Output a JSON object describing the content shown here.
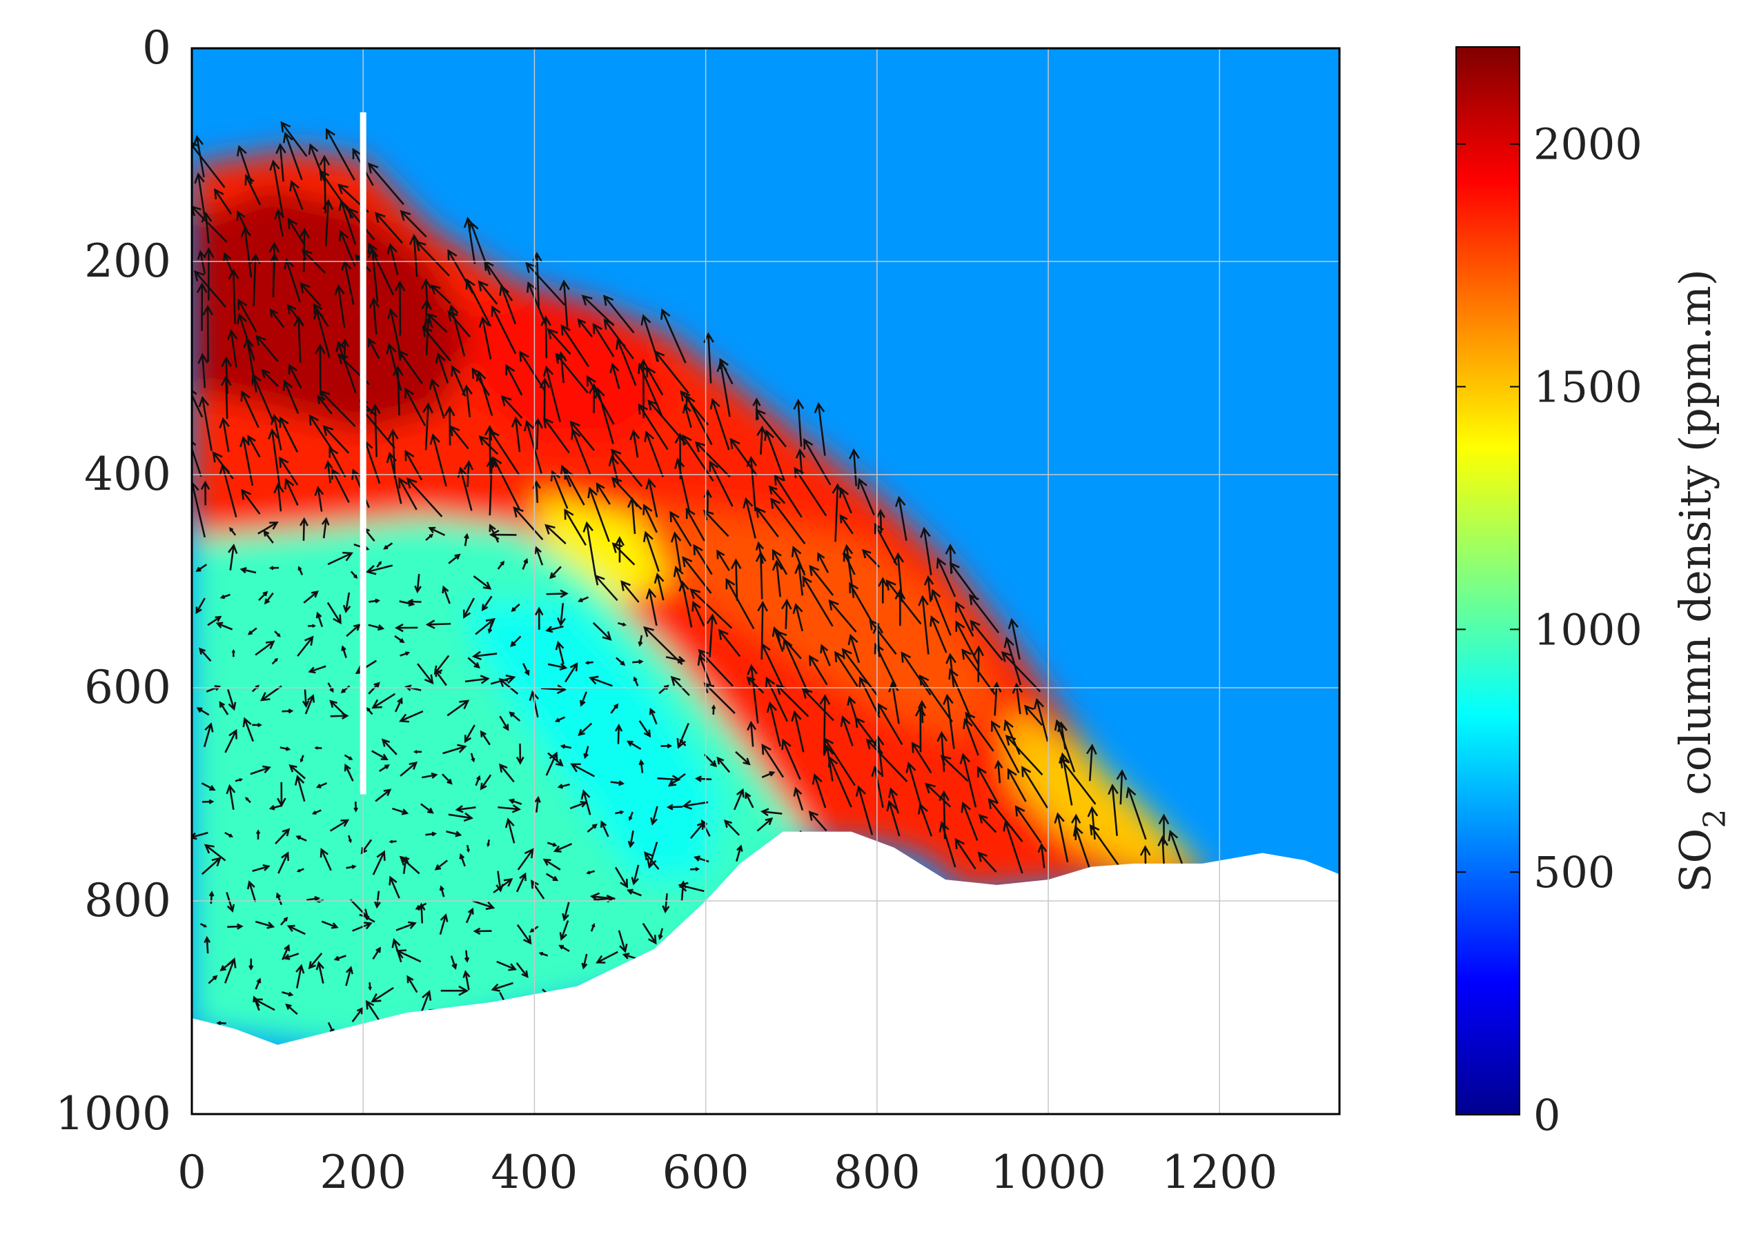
{
  "chart_data": {
    "type": "heatmap",
    "title": "",
    "xlabel": "",
    "ylabel": "",
    "xlim": [
      0,
      1340
    ],
    "ylim": [
      1000,
      0
    ],
    "x_ticks": [
      "0",
      "200",
      "400",
      "600",
      "800",
      "1000",
      "1200"
    ],
    "y_ticks": [
      "0",
      "200",
      "400",
      "600",
      "800",
      "1000"
    ],
    "grid": true,
    "colormap": "jet",
    "colorbar": {
      "label": "SO",
      "label_subscript": "2",
      "label_suffix": " column density (ppm.m)",
      "range": [
        0,
        2200
      ],
      "ticks": [
        "0",
        "500",
        "1000",
        "1500",
        "2000"
      ],
      "colors": [
        "#00008f",
        "#0000ff",
        "#0080ff",
        "#00ffff",
        "#80ff80",
        "#ffff00",
        "#ff8000",
        "#ff0000",
        "#800000"
      ]
    },
    "background_value": 600,
    "plume_regions": [
      {
        "value": 1850,
        "points": [
          [
            0,
            110
          ],
          [
            120,
            95
          ],
          [
            200,
            105
          ],
          [
            280,
            170
          ],
          [
            380,
            220
          ],
          [
            470,
            240
          ],
          [
            560,
            270
          ],
          [
            640,
            320
          ],
          [
            720,
            370
          ],
          [
            800,
            420
          ],
          [
            880,
            480
          ],
          [
            960,
            560
          ],
          [
            1030,
            640
          ],
          [
            1100,
            720
          ],
          [
            1190,
            780
          ],
          [
            1150,
            790
          ],
          [
            1050,
            780
          ],
          [
            900,
            790
          ],
          [
            860,
            760
          ],
          [
            800,
            745
          ],
          [
            720,
            740
          ],
          [
            640,
            650
          ],
          [
            560,
            570
          ],
          [
            470,
            500
          ],
          [
            380,
            450
          ],
          [
            270,
            440
          ],
          [
            150,
            450
          ],
          [
            0,
            460
          ]
        ]
      },
      {
        "value": 2100,
        "points": [
          [
            0,
            160
          ],
          [
            90,
            130
          ],
          [
            200,
            150
          ],
          [
            280,
            200
          ],
          [
            330,
            270
          ],
          [
            290,
            340
          ],
          [
            200,
            360
          ],
          [
            100,
            340
          ],
          [
            0,
            320
          ]
        ]
      },
      {
        "value": 1900,
        "points": [
          [
            320,
            240
          ],
          [
            420,
            230
          ],
          [
            520,
            270
          ],
          [
            560,
            330
          ],
          [
            500,
            370
          ],
          [
            400,
            370
          ],
          [
            330,
            320
          ]
        ]
      },
      {
        "value": 1750,
        "points": [
          [
            530,
            430
          ],
          [
            650,
            440
          ],
          [
            780,
            460
          ],
          [
            880,
            520
          ],
          [
            940,
            600
          ],
          [
            900,
            650
          ],
          [
            800,
            620
          ],
          [
            700,
            570
          ],
          [
            600,
            520
          ],
          [
            540,
            470
          ]
        ]
      },
      {
        "value": 1400,
        "points": [
          [
            400,
            420
          ],
          [
            520,
            440
          ],
          [
            560,
            500
          ],
          [
            500,
            520
          ],
          [
            420,
            480
          ]
        ]
      },
      {
        "value": 1500,
        "points": [
          [
            950,
            620
          ],
          [
            1040,
            660
          ],
          [
            1120,
            720
          ],
          [
            1180,
            770
          ],
          [
            1100,
            770
          ],
          [
            1020,
            740
          ],
          [
            960,
            690
          ]
        ]
      },
      {
        "value": 950,
        "points": [
          [
            0,
            460
          ],
          [
            150,
            450
          ],
          [
            270,
            440
          ],
          [
            380,
            450
          ],
          [
            470,
            500
          ],
          [
            560,
            570
          ],
          [
            640,
            650
          ],
          [
            720,
            740
          ],
          [
            650,
            790
          ],
          [
            600,
            840
          ],
          [
            520,
            880
          ],
          [
            400,
            900
          ],
          [
            300,
            920
          ],
          [
            200,
            940
          ],
          [
            100,
            930
          ],
          [
            0,
            920
          ]
        ]
      },
      {
        "value": 850,
        "points": [
          [
            320,
            520
          ],
          [
            450,
            520
          ],
          [
            540,
            600
          ],
          [
            620,
            700
          ],
          [
            600,
            780
          ],
          [
            520,
            780
          ],
          [
            450,
            700
          ],
          [
            380,
            620
          ],
          [
            330,
            560
          ]
        ]
      }
    ],
    "vent_line": {
      "x": 200,
      "y_start": 60,
      "y_end": 700
    },
    "mountain_profile": [
      [
        0,
        910
      ],
      [
        50,
        920
      ],
      [
        100,
        935
      ],
      [
        150,
        925
      ],
      [
        250,
        905
      ],
      [
        350,
        895
      ],
      [
        450,
        880
      ],
      [
        540,
        845
      ],
      [
        600,
        800
      ],
      [
        640,
        765
      ],
      [
        690,
        735
      ],
      [
        770,
        735
      ],
      [
        820,
        750
      ],
      [
        880,
        780
      ],
      [
        940,
        785
      ],
      [
        1000,
        780
      ],
      [
        1050,
        768
      ],
      [
        1100,
        765
      ],
      [
        1180,
        765
      ],
      [
        1250,
        755
      ],
      [
        1300,
        762
      ],
      [
        1340,
        775
      ]
    ]
  }
}
